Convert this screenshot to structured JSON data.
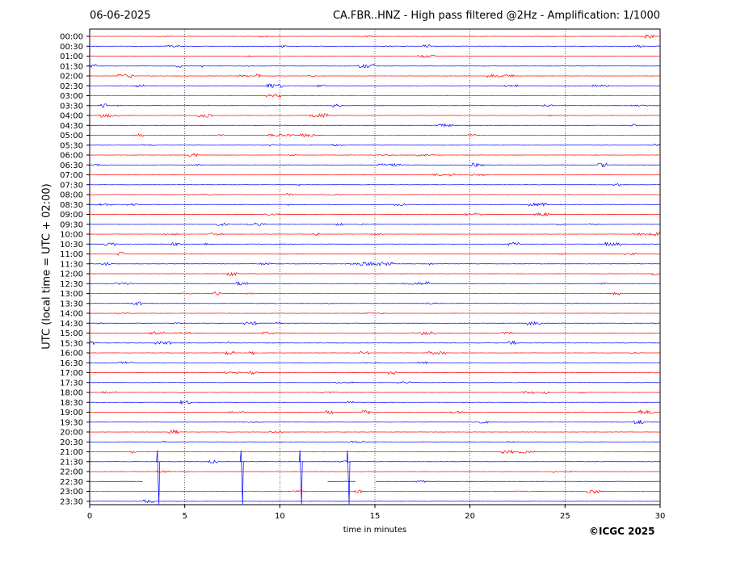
{
  "header": {
    "date": "06-06-2025",
    "title": "CA.FBR..HNZ - High pass filtered @2Hz - Amplification: 1/1000"
  },
  "credit": "©ICGC 2025",
  "chart_data": {
    "type": "line",
    "title": "CA.FBR..HNZ - High pass filtered @2Hz - Amplification: 1/1000",
    "xlabel": "time in minutes",
    "ylabel": "UTC (local time = UTC + 02:00)",
    "xlim": [
      0,
      30
    ],
    "xticks": [
      0,
      5,
      10,
      15,
      20,
      25,
      30
    ],
    "grid": "vertical dotted lines at 5-minute intervals",
    "trace_colors": [
      "#ff0000",
      "#0000ff"
    ],
    "rows": [
      "00:00",
      "00:30",
      "01:00",
      "01:30",
      "02:00",
      "02:30",
      "03:00",
      "03:30",
      "04:00",
      "04:30",
      "05:00",
      "05:30",
      "06:00",
      "06:30",
      "07:00",
      "07:30",
      "08:00",
      "08:30",
      "09:00",
      "09:30",
      "10:00",
      "10:30",
      "11:00",
      "11:30",
      "12:00",
      "12:30",
      "13:00",
      "13:30",
      "14:00",
      "14:30",
      "15:00",
      "15:30",
      "16:00",
      "16:30",
      "17:00",
      "17:30",
      "18:00",
      "18:30",
      "19:00",
      "19:30",
      "20:00",
      "20:30",
      "21:00",
      "21:30",
      "22:00",
      "22:30",
      "23:00",
      "23:30"
    ],
    "gaps": [
      {
        "row": "22:30",
        "from": 2.8,
        "to": 12.5
      },
      {
        "row": "22:30",
        "from": 14.0,
        "to": 15.0
      }
    ],
    "large_events": [
      {
        "row": "21:30",
        "minute": 3.6
      },
      {
        "row": "21:30",
        "minute": 8.0
      },
      {
        "row": "21:30",
        "minute": 11.1
      },
      {
        "row": "21:30",
        "minute": 13.6
      }
    ]
  }
}
